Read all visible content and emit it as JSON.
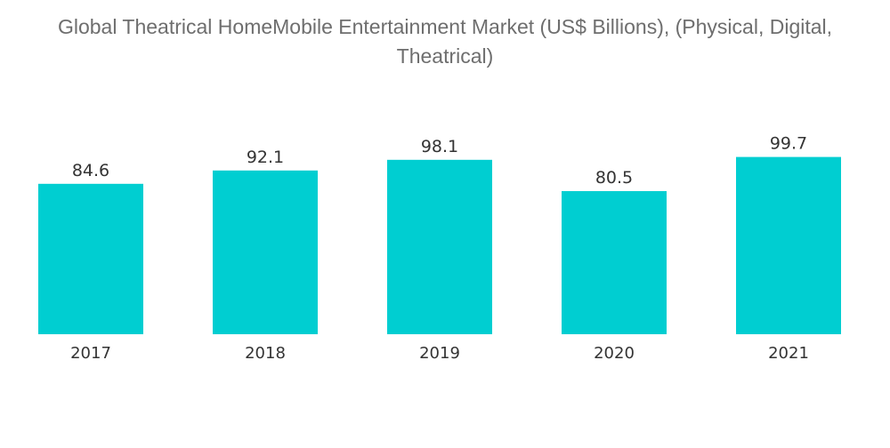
{
  "chart_data": {
    "type": "bar",
    "title": "Global Theatrical HomeMobile Entertainment Market (US$ Billions), (Physical, Digital, Theatrical)",
    "categories": [
      "2017",
      "2018",
      "2019",
      "2020",
      "2021"
    ],
    "values": [
      84.6,
      92.1,
      98.1,
      80.5,
      99.7
    ],
    "data_labels": [
      "84.6",
      "92.1",
      "98.1",
      "80.5",
      "99.7"
    ],
    "xlabel": "",
    "ylabel": "",
    "ylim": [
      0,
      120
    ],
    "grid": false,
    "legend": "none",
    "bar_color": "#00CED1"
  }
}
